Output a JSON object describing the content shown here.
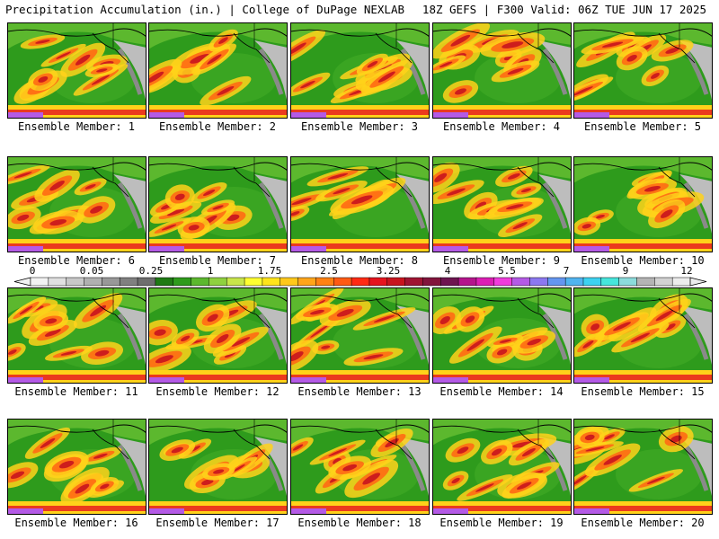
{
  "header": {
    "left_title": "Precipitation Accumulation (in.) | College of DuPage NEXLAB",
    "right_title": "18Z GEFS | F300 Valid: 06Z TUE JUN 17 2025"
  },
  "member_label_prefix": "Ensemble Member: ",
  "members": [
    {
      "label": "Ensemble Member: 1"
    },
    {
      "label": "Ensemble Member: 2"
    },
    {
      "label": "Ensemble Member: 3"
    },
    {
      "label": "Ensemble Member: 4"
    },
    {
      "label": "Ensemble Member: 5"
    },
    {
      "label": "Ensemble Member: 6"
    },
    {
      "label": "Ensemble Member: 7"
    },
    {
      "label": "Ensemble Member: 8"
    },
    {
      "label": "Ensemble Member: 9"
    },
    {
      "label": "Ensemble Member: 10"
    },
    {
      "label": "Ensemble Member: 11"
    },
    {
      "label": "Ensemble Member: 12"
    },
    {
      "label": "Ensemble Member: 13"
    },
    {
      "label": "Ensemble Member: 14"
    },
    {
      "label": "Ensemble Member: 15"
    },
    {
      "label": "Ensemble Member: 16"
    },
    {
      "label": "Ensemble Member: 17"
    },
    {
      "label": "Ensemble Member: 18"
    },
    {
      "label": "Ensemble Member: 19"
    },
    {
      "label": "Ensemble Member: 20"
    }
  ],
  "colorbar": {
    "tick_labels": [
      "0",
      "0.05",
      "0.25",
      "1",
      "1.75",
      "2.5",
      "3.25",
      "4",
      "5.5",
      "7",
      "9",
      "12"
    ],
    "colors": [
      "#f2f2f2",
      "#e0e0e0",
      "#c8c8c8",
      "#b0b0b0",
      "#989898",
      "#808080",
      "#6e6e6e",
      "#1f7a14",
      "#2e9b1c",
      "#5cb82e",
      "#8fd13f",
      "#c8e64a",
      "#ffff30",
      "#ffe41a",
      "#ffc81a",
      "#ffa51a",
      "#ff8214",
      "#ff5a14",
      "#ff2a14",
      "#e6141e",
      "#c8141e",
      "#a01432",
      "#82143c",
      "#6e1450",
      "#b4148c",
      "#dc1eb4",
      "#f03cdc",
      "#b45ae6",
      "#8c78f0",
      "#6496f0",
      "#50b4f0",
      "#3cd2f0",
      "#46e6dc",
      "#8cdcdc",
      "#b4b4b4",
      "#d2d2d2",
      "#ececec"
    ]
  }
}
